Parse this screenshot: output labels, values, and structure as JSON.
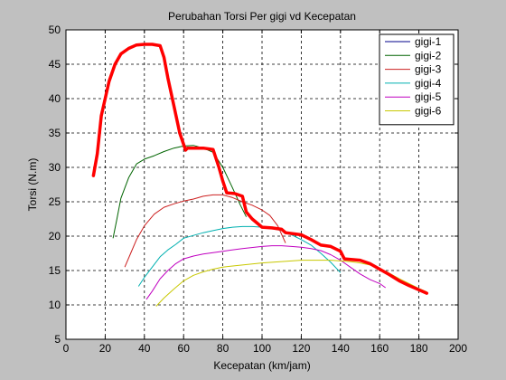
{
  "chart_data": {
    "type": "line",
    "title": "Perubahan Torsi Per gigi vd Kecepatan",
    "xlabel": "Kecepatan (km/jam)",
    "ylabel": "Torsi (N.m)",
    "xlim": [
      0,
      200
    ],
    "ylim": [
      5,
      50
    ],
    "xticks": [
      0,
      20,
      40,
      60,
      80,
      100,
      120,
      140,
      160,
      180,
      200
    ],
    "yticks": [
      5,
      10,
      15,
      20,
      25,
      30,
      35,
      40,
      45,
      50
    ],
    "grid": true,
    "legend_position": "top-right",
    "background_color": "#c0c0c0",
    "plot_background": "#ffffff",
    "series": [
      {
        "name": "gigi-1",
        "color": "#00008b",
        "x": [
          14,
          16,
          18,
          20,
          22,
          25,
          28,
          32,
          36,
          40,
          44,
          48,
          50,
          52,
          55,
          58,
          61,
          62
        ],
        "y": [
          28.8,
          32,
          37.5,
          40,
          42.5,
          45,
          46.5,
          47.3,
          47.8,
          47.9,
          47.9,
          47.7,
          46,
          43,
          39,
          35,
          32.5,
          32.8
        ]
      },
      {
        "name": "gigi-2",
        "color": "#006400",
        "x": [
          24,
          26,
          28,
          32,
          36,
          40,
          45,
          50,
          55,
          60,
          65,
          70,
          75,
          80,
          85,
          89,
          92
        ],
        "y": [
          19.7,
          22.5,
          25.5,
          28.5,
          30.5,
          31.2,
          31.7,
          32.3,
          32.8,
          33.1,
          33.2,
          32.8,
          32.2,
          30,
          27,
          24.5,
          22.8
        ]
      },
      {
        "name": "gigi-3",
        "color": "#cc2020",
        "x": [
          30,
          33,
          36,
          40,
          45,
          50,
          55,
          60,
          65,
          70,
          75,
          80,
          85,
          90,
          95,
          100,
          104,
          108,
          112
        ],
        "y": [
          15.5,
          17.5,
          19.5,
          21.5,
          23.2,
          24.2,
          24.7,
          25.1,
          25.4,
          25.8,
          26,
          26,
          25.6,
          25,
          24.5,
          23.8,
          23,
          21.5,
          19
        ]
      },
      {
        "name": "gigi-4",
        "color": "#00b0b0",
        "x": [
          37,
          40,
          44,
          48,
          52,
          56,
          60,
          65,
          70,
          75,
          80,
          85,
          90,
          95,
          100,
          105,
          110,
          115,
          120,
          125,
          130,
          135,
          140
        ],
        "y": [
          12.7,
          14,
          15.5,
          17,
          18,
          18.8,
          19.7,
          20.1,
          20.5,
          20.8,
          21.1,
          21.3,
          21.4,
          21.4,
          21.3,
          21.1,
          20.8,
          20.2,
          19.5,
          18.7,
          17.5,
          16.2,
          14.7
        ]
      },
      {
        "name": "gigi-5",
        "color": "#c000c0",
        "x": [
          41,
          44,
          48,
          52,
          56,
          60,
          65,
          70,
          75,
          80,
          90,
          100,
          105,
          110,
          115,
          120,
          125,
          130,
          135,
          140,
          145,
          150,
          155,
          160,
          163
        ],
        "y": [
          10.8,
          12,
          13.8,
          15,
          16,
          16.7,
          17.1,
          17.4,
          17.6,
          17.8,
          18.2,
          18.5,
          18.6,
          18.6,
          18.5,
          18.4,
          18.2,
          17.9,
          17.3,
          16.5,
          15.5,
          14.5,
          13.7,
          13.1,
          12.5
        ]
      },
      {
        "name": "gigi-6",
        "color": "#c8c800",
        "x": [
          46,
          50,
          55,
          60,
          65,
          70,
          75,
          80,
          90,
          100,
          110,
          120,
          125,
          130,
          135,
          140,
          145,
          150,
          155,
          160,
          165,
          170,
          175,
          180,
          184
        ],
        "y": [
          9.8,
          11,
          12.3,
          13.5,
          14.3,
          14.8,
          15.2,
          15.5,
          15.8,
          16.1,
          16.3,
          16.5,
          16.5,
          16.5,
          16.5,
          16.4,
          16.3,
          16.1,
          15.8,
          15.3,
          14.6,
          13.8,
          13.1,
          12.4,
          11.9
        ]
      }
    ],
    "envelope": {
      "color": "#ff0000",
      "x": [
        14,
        16,
        18,
        20,
        22,
        25,
        28,
        32,
        36,
        40,
        44,
        48,
        50,
        52,
        55,
        58,
        61,
        62,
        70,
        75,
        78,
        80,
        82,
        86,
        90,
        92,
        95,
        100,
        105,
        110,
        112,
        120,
        125,
        130,
        135,
        140,
        142,
        150,
        155,
        160,
        165,
        170,
        175,
        180,
        184
      ],
      "y": [
        28.8,
        32,
        37.5,
        40,
        42.5,
        45,
        46.5,
        47.3,
        47.8,
        47.9,
        47.9,
        47.7,
        46,
        43,
        39,
        35,
        32.5,
        32.8,
        32.8,
        32.6,
        30,
        28,
        26.3,
        26.2,
        25.8,
        23.5,
        22.5,
        21.3,
        21.2,
        21,
        20.5,
        20.2,
        19.5,
        18.7,
        18.5,
        17.8,
        16.7,
        16.5,
        16,
        15.2,
        14.4,
        13.5,
        12.8,
        12.2,
        11.7
      ]
    }
  }
}
